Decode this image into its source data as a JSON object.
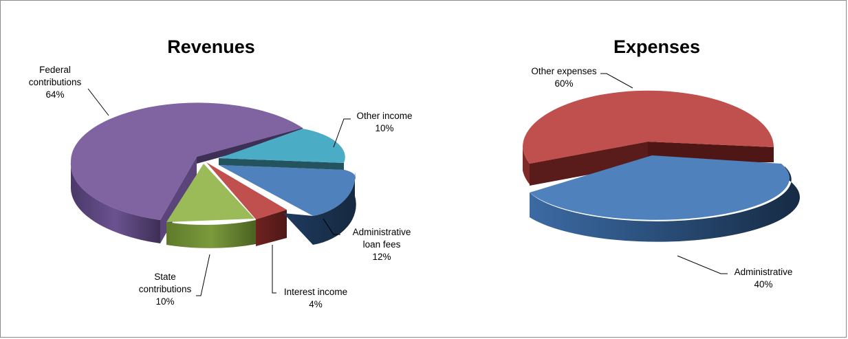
{
  "chart_data": [
    {
      "type": "pie",
      "title": "Revenues",
      "series": [
        {
          "label_lines": [
            "Federal",
            "contributions"
          ],
          "pct": "64%",
          "value": 64,
          "color": "#8064A2"
        },
        {
          "label_lines": [
            "Other income"
          ],
          "pct": "10%",
          "value": 10,
          "color": "#4BACC6"
        },
        {
          "label_lines": [
            "Administrative",
            "loan fees"
          ],
          "pct": "12%",
          "value": 12,
          "color": "#4F81BD"
        },
        {
          "label_lines": [
            "Interest income"
          ],
          "pct": "4%",
          "value": 4,
          "color": "#C0504D"
        },
        {
          "label_lines": [
            "State",
            "contributions"
          ],
          "pct": "10%",
          "value": 10,
          "color": "#9BBB59"
        }
      ],
      "style": "3d-exploded"
    },
    {
      "type": "pie",
      "title": "Expenses",
      "series": [
        {
          "label_lines": [
            "Other expenses"
          ],
          "pct": "60%",
          "value": 60,
          "color": "#C0504D"
        },
        {
          "label_lines": [
            "Administrative"
          ],
          "pct": "40%",
          "value": 40,
          "color": "#4F81BD"
        }
      ],
      "style": "3d-exploded"
    }
  ]
}
